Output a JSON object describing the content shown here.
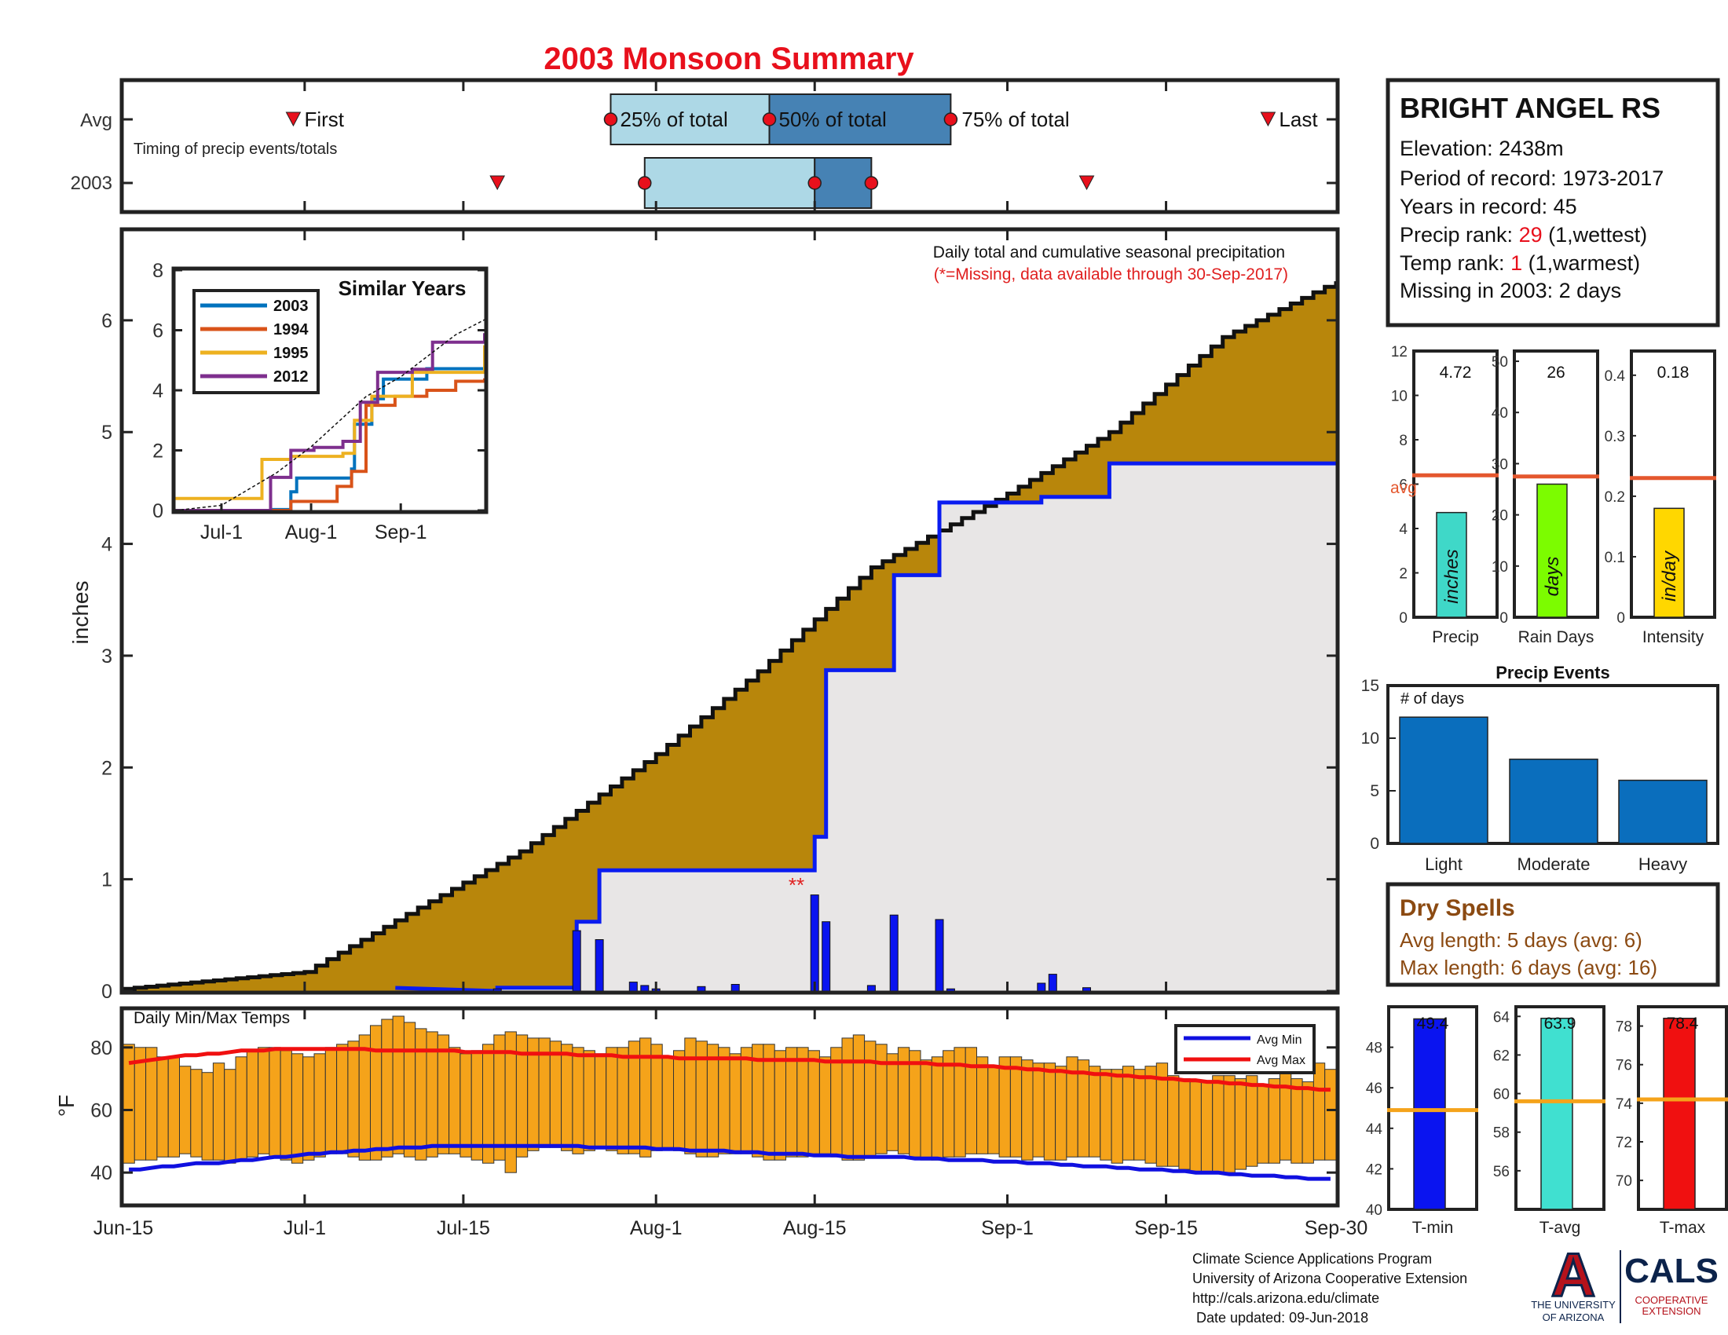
{
  "title": "2003 Monsoon Summary",
  "colors": {
    "title": "#e8101c",
    "cum_avg": "#b8860b",
    "cum_year": "#0a1cf0",
    "daily": "#0a14f0",
    "missing": "#e02020",
    "temp_bar": "#f5a31a",
    "avg_min": "#1010e0",
    "avg_max": "#f01010",
    "avg_line": "#e4572e",
    "events_bar": "#0a6ebd",
    "dry_spells": "#8b4a12",
    "tmin": "#0a14f0",
    "tavg": "#40e0d0",
    "tmax": "#f01010",
    "tgrid": "#f5a31a"
  },
  "timing": {
    "row_labels": [
      "Avg",
      "2003"
    ],
    "subtitle": "Timing of precip events/totals",
    "first_label": "First",
    "last_label": "Last",
    "p25_label": "25% of total",
    "p50_label": "50% of total",
    "p75_label": "75% of total",
    "avg": {
      "first": "2003-06-30",
      "p25": "2003-07-28",
      "p50": "2003-08-11",
      "p75": "2003-08-27",
      "last": "2003-09-24"
    },
    "year": {
      "first": "2003-07-18",
      "p25": "2003-07-31",
      "p50": "2003-08-15",
      "p75": "2003-08-20",
      "last": "2003-09-08"
    }
  },
  "station": {
    "name": "BRIGHT ANGEL RS",
    "elevation": "Elevation: 2438m",
    "period": "Period of record: 1973-2017",
    "years": "Years in record: 45",
    "precip_rank_prefix": "Precip rank: ",
    "precip_rank_value": "29",
    "precip_rank_suffix": " (1,wettest)",
    "temp_rank_prefix": "Temp rank: ",
    "temp_rank_value": "1",
    "temp_rank_suffix": " (1,warmest)",
    "missing": "Missing in 2003: 2 days"
  },
  "main_note": {
    "line1": "Daily total and cumulative seasonal precipitation",
    "line2": "(*=Missing, data available through 30-Sep-2017)"
  },
  "missing_marker": "**",
  "temps_label": "Daily Min/Max Temps",
  "x_ticks": [
    "Jun-15",
    "Jul-1",
    "Jul-15",
    "Aug-1",
    "Aug-15",
    "Sep-1",
    "Sep-15",
    "Sep-30"
  ],
  "inset": {
    "title": "Similar Years",
    "x_ticks": [
      "Jul-1",
      "Aug-1",
      "Sep-1"
    ]
  },
  "summary_bars": {
    "avg_label": "avg",
    "panels": [
      {
        "label": "Precip",
        "unit": "inches",
        "value": 4.72,
        "value_text": "4.72",
        "avg": 6.4,
        "ylim": [
          0,
          12
        ],
        "ticks": [
          "0",
          "2",
          "4",
          "6",
          "8",
          "10",
          "12"
        ],
        "color": "#3fd8c8"
      },
      {
        "label": "Rain Days",
        "unit": "days",
        "value": 26,
        "value_text": "26",
        "avg": 27.5,
        "ylim": [
          0,
          52
        ],
        "ticks": [
          "0",
          "10",
          "20",
          "30",
          "40",
          "50"
        ],
        "color": "#7cfc00"
      },
      {
        "label": "Intensity",
        "unit": "in/day",
        "value": 0.18,
        "value_text": "0.18",
        "avg": 0.23,
        "ylim": [
          0,
          0.44
        ],
        "ticks": [
          "0",
          "0.1",
          "0.2",
          "0.3",
          "0.4"
        ],
        "color": "#ffd700"
      }
    ]
  },
  "events": {
    "title": "Precip Events",
    "ylabel_note": "# of days",
    "categories": [
      "Light",
      "Moderate",
      "Heavy"
    ],
    "values": [
      12,
      8,
      6
    ],
    "ylim": [
      0,
      15
    ],
    "ticks": [
      "0",
      "5",
      "10",
      "15"
    ]
  },
  "dry_spells": {
    "title": "Dry Spells",
    "avg_length": "Avg length: 5 days (avg: 6)",
    "max_length": "Max length: 6 days (avg: 16)"
  },
  "temp_bars": [
    {
      "label": "T-min",
      "value": 49.4,
      "value_text": "49.4",
      "avg": 44.9,
      "ylim": [
        40,
        50
      ],
      "ticks": [
        "40",
        "42",
        "44",
        "46",
        "48"
      ]
    },
    {
      "label": "T-avg",
      "value": 63.9,
      "value_text": "63.9",
      "avg": 59.6,
      "ylim": [
        54,
        64.5
      ],
      "ticks": [
        "56",
        "58",
        "60",
        "62",
        "64"
      ]
    },
    {
      "label": "T-max",
      "value": 78.4,
      "value_text": "78.4",
      "avg": 74.2,
      "ylim": [
        68.5,
        79
      ],
      "ticks": [
        "70",
        "72",
        "74",
        "76",
        "78"
      ]
    }
  ],
  "footer": {
    "line1": "Climate Science Applications Program",
    "line2": "University of Arizona Cooperative Extension",
    "line3": "http://cals.arizona.edu/climate",
    "line4": " Date updated: 09-Jun-2018"
  },
  "logos": {
    "ua_letter": "A",
    "ua_line1": "THE UNIVERSITY",
    "ua_line2": "OF ARIZONA",
    "cals": "CALS",
    "cals_line1": "COOPERATIVE",
    "cals_line2": "EXTENSION"
  },
  "chart_data": [
    {
      "type": "area",
      "title": "Daily total and cumulative seasonal precipitation",
      "ylabel": "inches",
      "xlim": [
        "2003-06-15",
        "2003-09-30"
      ],
      "ylim": [
        0,
        6.8
      ],
      "yticks": [
        0,
        1,
        2,
        3,
        4,
        5,
        6
      ],
      "series": [
        {
          "kind": "cumulative_avg",
          "x": [
            "2003-06-15",
            "2003-07-01",
            "2003-07-10",
            "2003-07-20",
            "2003-08-01",
            "2003-08-10",
            "2003-08-20",
            "2003-09-01",
            "2003-09-10",
            "2003-09-20",
            "2003-09-30"
          ],
          "values": [
            0.02,
            0.17,
            0.69,
            1.25,
            2.12,
            2.86,
            3.79,
            4.45,
            5.0,
            5.85,
            6.35
          ]
        },
        {
          "kind": "cumulative_2003",
          "x": [
            "2003-06-15",
            "2003-07-18",
            "2003-07-25",
            "2003-07-27",
            "2003-08-15",
            "2003-08-16",
            "2003-08-22",
            "2003-08-26",
            "2003-09-04",
            "2003-09-10",
            "2003-09-30"
          ],
          "values": [
            0.0,
            0.03,
            0.62,
            1.08,
            1.38,
            2.87,
            3.72,
            4.37,
            4.42,
            4.72,
            4.72
          ]
        },
        {
          "kind": "daily_2003",
          "x": [
            "2003-07-18",
            "2003-07-25",
            "2003-07-27",
            "2003-07-30",
            "2003-07-31",
            "2003-08-01",
            "2003-08-05",
            "2003-08-08",
            "2003-08-15",
            "2003-08-16",
            "2003-08-20",
            "2003-08-22",
            "2003-08-26",
            "2003-08-27",
            "2003-09-04",
            "2003-09-05",
            "2003-09-08"
          ],
          "values": [
            0.02,
            0.54,
            0.46,
            0.08,
            0.05,
            0.02,
            0.04,
            0.06,
            0.86,
            0.62,
            0.05,
            0.68,
            0.64,
            0.02,
            0.07,
            0.15,
            0.03
          ]
        }
      ],
      "missing_dates": [
        "2003-08-14",
        "2003-08-15"
      ]
    },
    {
      "type": "line",
      "title": "Similar Years",
      "x_ticks": [
        "Jul-1",
        "Aug-1",
        "Sep-1"
      ],
      "ylim": [
        0,
        8
      ],
      "yticks": [
        0,
        2,
        4,
        6,
        8
      ],
      "series": [
        {
          "name": "2003",
          "color": "#0072bd",
          "x": [
            "06-15",
            "07-18",
            "07-25",
            "07-27",
            "08-15",
            "08-16",
            "08-22",
            "08-26",
            "09-10",
            "09-30"
          ],
          "values": [
            0,
            0.03,
            0.62,
            1.08,
            1.38,
            2.87,
            3.72,
            4.37,
            4.72,
            4.72
          ]
        },
        {
          "name": "1994",
          "color": "#d95319",
          "x": [
            "06-15",
            "07-10",
            "07-25",
            "08-10",
            "08-15",
            "08-20",
            "08-30",
            "09-10",
            "09-20",
            "09-30"
          ],
          "values": [
            0,
            0,
            0.3,
            0.8,
            1.3,
            3.5,
            3.8,
            4.0,
            4.3,
            4.4
          ]
        },
        {
          "name": "1995",
          "color": "#edb120",
          "x": [
            "06-15",
            "06-20",
            "07-10",
            "07-15",
            "07-25",
            "08-12",
            "08-16",
            "08-22",
            "09-05",
            "09-28",
            "09-30"
          ],
          "values": [
            0.4,
            0.4,
            0.4,
            1.7,
            1.8,
            1.9,
            3.0,
            3.8,
            4.6,
            4.6,
            5.5
          ]
        },
        {
          "name": "2012",
          "color": "#7e2f8e",
          "x": [
            "06-15",
            "07-12",
            "07-18",
            "07-25",
            "08-02",
            "08-12",
            "08-18",
            "08-24",
            "09-05",
            "09-12",
            "09-30"
          ],
          "values": [
            0,
            0,
            1.1,
            2.0,
            2.1,
            2.3,
            3.6,
            4.6,
            4.7,
            5.6,
            5.9
          ]
        },
        {
          "name": "avg",
          "dashed": true,
          "x": [
            "06-15",
            "07-01",
            "07-20",
            "08-01",
            "08-20",
            "09-01",
            "09-20",
            "09-30"
          ],
          "values": [
            0,
            0.17,
            1.25,
            2.12,
            3.79,
            4.45,
            5.85,
            6.35
          ]
        }
      ]
    },
    {
      "type": "bar",
      "title": "Daily Min/Max Temps",
      "ylabel": "°F",
      "ylim": [
        30,
        92
      ],
      "yticks": [
        40,
        60,
        80
      ],
      "legend": [
        "Avg Min",
        "Avg Max"
      ],
      "legend_position": "top-right",
      "min": [
        43,
        44,
        44,
        45,
        45,
        46,
        45,
        44,
        44,
        43,
        44,
        45,
        46,
        45,
        44,
        43,
        44,
        45,
        46,
        46,
        45,
        44,
        44,
        45,
        46,
        45,
        44,
        45,
        46,
        46,
        45,
        44,
        43,
        44,
        40,
        45,
        47,
        48,
        48,
        47,
        46,
        47,
        48,
        47,
        46,
        46,
        45,
        47,
        48,
        47,
        46,
        45,
        45,
        46,
        46,
        46,
        45,
        44,
        44,
        45,
        45,
        46,
        46,
        45,
        44,
        44,
        45,
        46,
        47,
        46,
        45,
        44,
        44,
        45,
        45,
        46,
        46,
        46,
        45,
        45,
        44,
        45,
        44,
        44,
        45,
        45,
        45,
        44,
        43,
        44,
        44,
        43,
        42,
        42,
        41,
        40,
        40,
        40,
        40,
        41,
        42,
        43,
        43,
        44,
        43,
        43,
        44,
        44
      ],
      "max": [
        81,
        80,
        80,
        77,
        77,
        74,
        73,
        72,
        75,
        73,
        77,
        79,
        80,
        80,
        79,
        78,
        77,
        78,
        80,
        81,
        82,
        84,
        87,
        89,
        90,
        88,
        86,
        85,
        84,
        80,
        78,
        79,
        81,
        84,
        85,
        84,
        83,
        83,
        82,
        81,
        80,
        79,
        78,
        80,
        80,
        82,
        83,
        81,
        77,
        79,
        83,
        82,
        81,
        80,
        78,
        80,
        81,
        81,
        79,
        80,
        80,
        79,
        77,
        80,
        83,
        84,
        82,
        81,
        78,
        80,
        79,
        76,
        77,
        79,
        80,
        80,
        77,
        74,
        77,
        77,
        76,
        75,
        75,
        74,
        77,
        76,
        74,
        73,
        73,
        74,
        73,
        74,
        75,
        71,
        70,
        69,
        69,
        71,
        71,
        70,
        71,
        68,
        70,
        72,
        70,
        69,
        75,
        73
      ],
      "avg_min": [
        41,
        41,
        41.5,
        42,
        42,
        42.5,
        43,
        43,
        43,
        43.5,
        44,
        44,
        44.5,
        45,
        45,
        45.5,
        46,
        46,
        46.5,
        46.5,
        47,
        47,
        47.5,
        47.5,
        48,
        48,
        48,
        48.5,
        48.5,
        48.5,
        48.5,
        48.5,
        48.5,
        48.5,
        48.5,
        48.5,
        48.5,
        48.5,
        48.5,
        48.5,
        48.5,
        48,
        48,
        48,
        48,
        48,
        48,
        47.5,
        47.5,
        47.5,
        47,
        47,
        47,
        47,
        46.5,
        46.5,
        46.5,
        46,
        46,
        46,
        46,
        45.5,
        45.5,
        45.5,
        45,
        45,
        45,
        45,
        45,
        45,
        44.5,
        44.5,
        44.5,
        44,
        44,
        44,
        44,
        43.5,
        43.5,
        43.5,
        43,
        43,
        43,
        42.5,
        42.5,
        42,
        42,
        42,
        41.5,
        41.5,
        41,
        41,
        41,
        40.5,
        40.5,
        40,
        40,
        40,
        39.5,
        39.5,
        39,
        39,
        39,
        38.5,
        38.5,
        38,
        38,
        38
      ],
      "avg_max": [
        75,
        75.5,
        76,
        76.5,
        77,
        77.5,
        77.5,
        78,
        78,
        78.5,
        79,
        79,
        79,
        79.5,
        79.5,
        79.5,
        79.5,
        79.5,
        79.5,
        79.5,
        79.5,
        79.5,
        79,
        79,
        79,
        79,
        79,
        79,
        79,
        79,
        78.5,
        78.5,
        78.5,
        78.5,
        78.5,
        78,
        78,
        78,
        78,
        78,
        77.5,
        77.5,
        77.5,
        77.5,
        77,
        77,
        77,
        77,
        77,
        76.5,
        76.5,
        76.5,
        76.5,
        76.5,
        76.5,
        76.5,
        76,
        76,
        76,
        76,
        76,
        76,
        75.5,
        75.5,
        75.5,
        75.5,
        75.5,
        75,
        75,
        75,
        75,
        75,
        74.5,
        74.5,
        74.5,
        74,
        74,
        74,
        73.5,
        73.5,
        73,
        73,
        72.5,
        72.5,
        72,
        72,
        71.5,
        71.5,
        71,
        71,
        70.5,
        70.5,
        70,
        70,
        69.5,
        69.5,
        69,
        69,
        68.5,
        68.5,
        68,
        68,
        67.5,
        67.5,
        67,
        67,
        66.5,
        66.5
      ]
    }
  ]
}
